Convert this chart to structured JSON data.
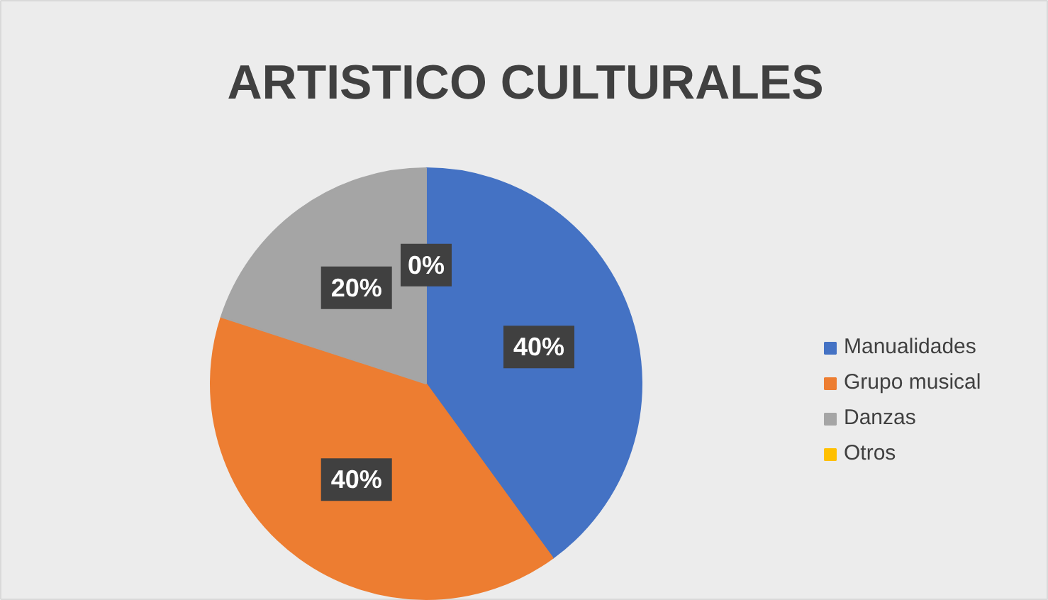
{
  "chart_data": {
    "type": "pie",
    "title": "ARTISTICO CULTURALES",
    "categories": [
      "Manualidades",
      "Grupo musical",
      "Danzas",
      "Otros"
    ],
    "values": [
      40,
      40,
      20,
      0
    ],
    "colors": [
      "#4472c4",
      "#ed7d31",
      "#a5a5a5",
      "#ffc000"
    ],
    "value_labels": [
      "40%",
      "40%",
      "20%",
      "0%"
    ],
    "legend": "right"
  }
}
